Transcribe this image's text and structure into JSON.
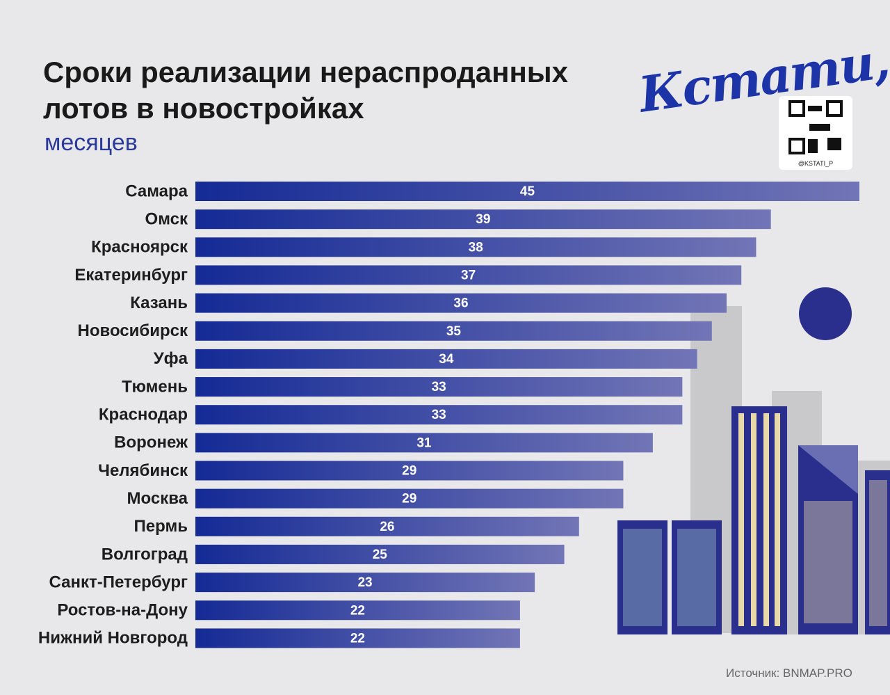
{
  "chart_data": {
    "type": "bar",
    "orientation": "horizontal",
    "title": "Сроки реализации нераспроданных лотов в новостройках",
    "subtitle": "месяцев",
    "categories": [
      "Самара",
      "Омск",
      "Красноярск",
      "Екатеринбург",
      "Казань",
      "Новосибирск",
      "Уфа",
      "Тюмень",
      "Краснодар",
      "Воронеж",
      "Челябинск",
      "Москва",
      "Пермь",
      "Волгоград",
      "Санкт-Петербург",
      "Ростов-на-Дону",
      "Нижний Новгород"
    ],
    "values": [
      45,
      39,
      38,
      37,
      36,
      35,
      34,
      33,
      33,
      31,
      29,
      29,
      26,
      25,
      23,
      22,
      22
    ],
    "colors": [
      "#142a95",
      "#7275b6"
    ],
    "xlim": [
      0,
      45
    ]
  },
  "logo": {
    "name": "Кстати,",
    "handle": "@KSTATI_P"
  },
  "source": "Источник: BNMAP.PRO"
}
